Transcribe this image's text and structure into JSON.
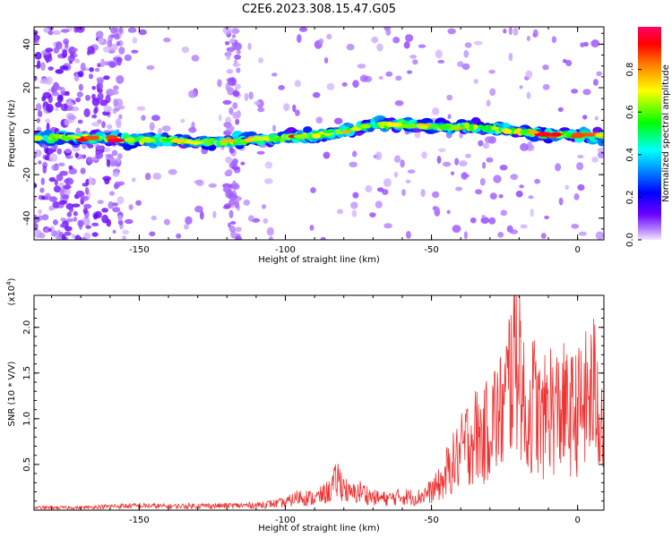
{
  "title": "C2E6.2023.308.15.47.G05",
  "chart_data": [
    {
      "type": "heatmap",
      "xlabel": "Height of straight line (km)",
      "ylabel": "Frequency (Hz)",
      "xlim": [
        -186,
        9
      ],
      "ylim": [
        -50,
        48
      ],
      "x_ticks": [
        -150,
        -100,
        -50,
        0
      ],
      "y_ticks": [
        -40,
        -20,
        0,
        20,
        40
      ],
      "colorbar": {
        "label": "Normalized spectral amplitude",
        "range": [
          0,
          1
        ],
        "ticks": [
          0.0,
          0.2,
          0.4,
          0.6,
          0.8
        ],
        "colormap": [
          "#e6ccff",
          "#8000ff",
          "#0000ff",
          "#00ffff",
          "#00ff00",
          "#ffff00",
          "#ff8000",
          "#ff0000",
          "#ff0080"
        ]
      },
      "ridge": {
        "x": [
          -186,
          -175,
          -165,
          -150,
          -140,
          -130,
          -120,
          -110,
          -100,
          -90,
          -80,
          -70,
          -60,
          -50,
          -40,
          -30,
          -20,
          -10,
          0,
          9
        ],
        "y": [
          -3,
          -3,
          -3,
          -4,
          -4,
          -5,
          -5,
          -4,
          -3,
          -2,
          0,
          3,
          3,
          2,
          2,
          1,
          0,
          -2,
          -2,
          -2
        ]
      }
    },
    {
      "type": "line",
      "xlabel": "Height of straight line (km)",
      "ylabel": "SNR (10 * V/V)",
      "y_multiplier": "(x10^4)",
      "xlim": [
        -186,
        9
      ],
      "ylim": [
        0,
        2.35
      ],
      "x_ticks": [
        -150,
        -100,
        -50,
        0
      ],
      "y_ticks": [
        0.5,
        1.0,
        1.5,
        2.0
      ],
      "series": [
        {
          "color": "#ee3333",
          "x": [
            -186,
            -170,
            -160,
            -150,
            -140,
            -130,
            -120,
            -110,
            -100,
            -95,
            -90,
            -85,
            -82,
            -78,
            -74,
            -70,
            -65,
            -60,
            -55,
            -50,
            -45,
            -40,
            -38,
            -35,
            -32,
            -30,
            -27,
            -25,
            -22,
            -20,
            -18,
            -15,
            -12,
            -10,
            -8,
            -5,
            -3,
            0,
            2,
            4,
            6,
            8,
            9
          ],
          "y": [
            0.04,
            0.04,
            0.06,
            0.07,
            0.06,
            0.07,
            0.07,
            0.08,
            0.12,
            0.22,
            0.18,
            0.3,
            0.5,
            0.25,
            0.3,
            0.2,
            0.18,
            0.22,
            0.2,
            0.3,
            0.5,
            0.75,
            0.9,
            1.0,
            0.95,
            1.2,
            1.25,
            1.35,
            2.05,
            2.3,
            1.1,
            1.45,
            1.1,
            1.45,
            1.3,
            1.35,
            1.25,
            1.3,
            1.4,
            1.5,
            1.6,
            1.3,
            1.0
          ]
        }
      ]
    }
  ]
}
